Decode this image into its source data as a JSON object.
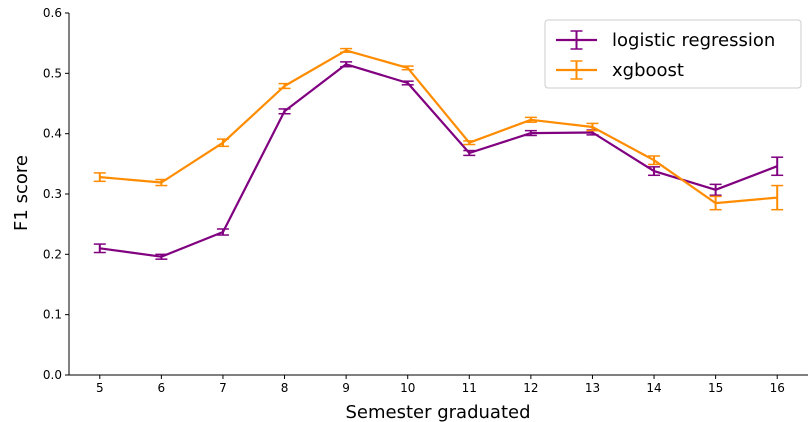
{
  "chart_data": {
    "type": "line",
    "xlabel": "Semester graduated",
    "ylabel": "F1 score",
    "x": [
      5,
      6,
      7,
      8,
      9,
      10,
      11,
      12,
      13,
      14,
      15,
      16
    ],
    "x_tick_labels": [
      "5",
      "6",
      "7",
      "8",
      "9",
      "10",
      "11",
      "12",
      "13",
      "14",
      "15",
      "16"
    ],
    "xlim": [
      4.5,
      16.5
    ],
    "ylim": [
      0.0,
      0.6
    ],
    "y_tick_labels": [
      "0.0",
      "0.1",
      "0.2",
      "0.3",
      "0.4",
      "0.5",
      "0.6"
    ],
    "grid": false,
    "legend_position": "top-right",
    "error_bars": true,
    "series": [
      {
        "name": "logistic regression",
        "color": "#800080",
        "values": [
          0.21,
          0.196,
          0.237,
          0.437,
          0.515,
          0.484,
          0.368,
          0.401,
          0.402,
          0.338,
          0.307,
          0.346
        ],
        "errors": [
          0.007,
          0.004,
          0.005,
          0.004,
          0.004,
          0.003,
          0.004,
          0.004,
          0.004,
          0.007,
          0.009,
          0.015
        ]
      },
      {
        "name": "xgboost",
        "color": "#ff8c00",
        "values": [
          0.328,
          0.319,
          0.385,
          0.479,
          0.538,
          0.509,
          0.385,
          0.423,
          0.411,
          0.356,
          0.285,
          0.294
        ],
        "errors": [
          0.007,
          0.005,
          0.006,
          0.004,
          0.003,
          0.003,
          0.003,
          0.004,
          0.006,
          0.007,
          0.011,
          0.02
        ]
      }
    ]
  }
}
